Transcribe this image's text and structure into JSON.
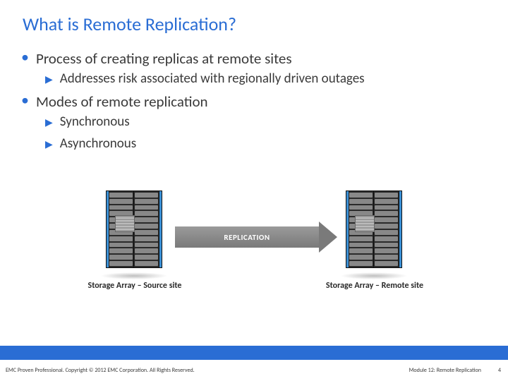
{
  "title": "What is Remote Replication?",
  "bullets": [
    {
      "text": "Process of creating replicas at remote sites",
      "sub": [
        "Addresses risk associated with regionally driven outages"
      ]
    },
    {
      "text": "Modes of remote replication",
      "sub": [
        "Synchronous",
        "Asynchronous"
      ]
    }
  ],
  "diagram": {
    "label": "REPLICATION",
    "caption_left": "Storage Array – Source site",
    "caption_right": "Storage Array – Remote site",
    "colors": {
      "rack_bg": "#2a2a2a",
      "drive": "#888888",
      "accent_strip": "#3a8fd4",
      "arrow_bg": "#7a7a7a",
      "arrow_text": "#ffffff"
    }
  },
  "footer": {
    "copyright": "EMC Proven Professional. Copyright © 2012 EMC Corporation. All Rights Reserved.",
    "module": "Module 12: Remote Replication",
    "page": "4",
    "bar_color": "#2a6dd4"
  },
  "theme": {
    "title_color": "#2a6dd4",
    "bullet_color": "#2a6dd4",
    "text_color": "#3a3a3a",
    "background": "#ffffff"
  }
}
